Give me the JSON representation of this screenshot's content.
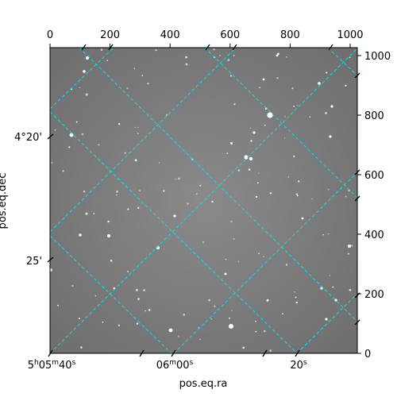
{
  "figure": {
    "pixel_axes": {
      "top_ticks": [
        "0",
        "200",
        "400",
        "600",
        "800",
        "1000"
      ],
      "right_ticks": [
        "0",
        "200",
        "400",
        "600",
        "800",
        "1000"
      ]
    },
    "world_axes": {
      "ra_label": "pos.eq.ra",
      "dec_label": "pos.eq.dec",
      "ra_ticks": [
        {
          "h": "5",
          "m": "05",
          "s": "40"
        },
        {
          "h": "",
          "m": "06",
          "s": "00"
        },
        {
          "h": "",
          "m": "",
          "s": "20"
        }
      ],
      "dec_ticks": [
        "4°20'",
        "25'"
      ]
    },
    "grid_color": "#00e5e5",
    "image_tone": "#808080"
  }
}
